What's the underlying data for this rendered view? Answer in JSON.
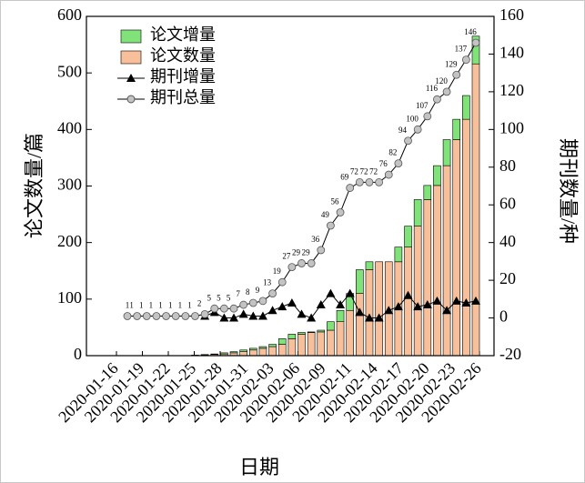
{
  "chart_data": {
    "type": "bar-line",
    "xlabel": "日期",
    "ylabel": "论文数量/篇",
    "y2label": "期刊数量/种",
    "xtick_labels": [
      "2020-01-16",
      "2020-01-19",
      "2020-01-22",
      "2020-01-25",
      "2020-01-28",
      "2020-01-31",
      "2020-02-03",
      "2020-02-06",
      "2020-02-09",
      "2020-02-11",
      "2020-02-14",
      "2020-02-17",
      "2020-02-20",
      "2020-02-23",
      "2020-02-26"
    ],
    "ylim": [
      0,
      600
    ],
    "yticks": [
      0,
      100,
      200,
      300,
      400,
      500,
      600
    ],
    "y2lim": [
      -20,
      160
    ],
    "y2ticks": [
      -20,
      0,
      20,
      40,
      60,
      80,
      100,
      120,
      140,
      160
    ],
    "series": [
      {
        "name": "论文增量",
        "color": "#80e37a",
        "kind": "bar",
        "values": [
          0,
          0,
          0,
          0,
          0,
          0,
          0,
          1,
          1,
          1,
          2,
          2,
          3,
          3,
          3,
          4,
          10,
          8,
          3,
          1,
          3,
          15,
          20,
          30,
          42,
          14,
          0,
          0,
          26,
          37,
          47,
          25,
          35,
          46,
          36,
          42,
          49
        ]
      },
      {
        "name": "论文数量",
        "color": "#f7c09a",
        "kind": "bar",
        "values": [
          0,
          0,
          0,
          0,
          0,
          0,
          0,
          0,
          1,
          2,
          3,
          5,
          7,
          10,
          13,
          16,
          20,
          30,
          38,
          41,
          42,
          45,
          60,
          80,
          110,
          152,
          166,
          166,
          166,
          192,
          229,
          276,
          301,
          336,
          382,
          418,
          516
        ]
      },
      {
        "name": "期刊增量",
        "color": "#000000",
        "kind": "line",
        "marker": "triangle",
        "axis": "y2",
        "values": [
          null,
          null,
          null,
          null,
          null,
          null,
          null,
          null,
          1,
          3,
          0,
          0,
          2,
          1,
          1,
          4,
          6,
          8,
          2,
          0,
          7,
          13,
          7,
          13,
          3,
          0,
          0,
          4,
          6,
          12,
          6,
          7,
          9,
          4,
          9,
          8,
          9
        ]
      },
      {
        "name": "期刊总量",
        "color": "#c3c3c3",
        "kind": "line",
        "marker": "circle",
        "axis": "y2",
        "labels": true,
        "values": [
          1,
          1,
          1,
          1,
          1,
          1,
          1,
          1,
          2,
          5,
          5,
          5,
          7,
          8,
          9,
          13,
          19,
          27,
          29,
          29,
          36,
          49,
          56,
          69,
          72,
          72,
          72,
          76,
          82,
          94,
          100,
          107,
          116,
          120,
          129,
          137,
          146
        ]
      }
    ]
  }
}
